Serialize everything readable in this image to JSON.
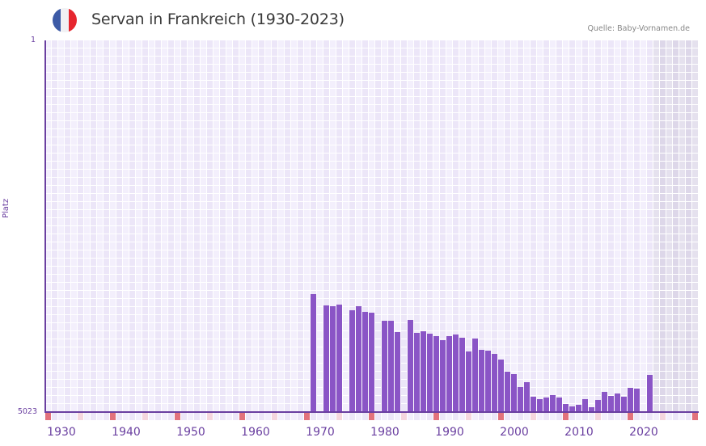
{
  "header": {
    "title": "Servan in Frankreich (1930-2023)",
    "source": "Quelle: Baby-Vornamen.de",
    "flag_colors": [
      "#3c5aa6",
      "#f1f1f4",
      "#e6262e"
    ]
  },
  "colors": {
    "bar": "#8a55c6",
    "axis": "#6a3fa0",
    "grid_a": "#f3effc",
    "grid_b": "#ece6f8",
    "future_a": "#e5e1ee",
    "future_b": "#ddd7e9",
    "marker_decade": "#e2727c",
    "marker_half": "#f5d6de",
    "marker_a": "#f3effc",
    "marker_b": "#ece6f8"
  },
  "chart_data": {
    "type": "bar",
    "title": "Servan in Frankreich (1930-2023)",
    "xlabel": "",
    "ylabel": "Platz",
    "y_inverted": true,
    "ylim": [
      1,
      5023
    ],
    "y_ticks": [
      "1",
      "5023"
    ],
    "x_range": [
      1929,
      2029
    ],
    "x_ticks": [
      1930,
      1940,
      1950,
      1960,
      1970,
      1980,
      1990,
      2000,
      2010,
      2020
    ],
    "future_shaded_from": 2023,
    "grid": true,
    "categories": [
      1970,
      1972,
      1973,
      1974,
      1976,
      1977,
      1978,
      1979,
      1981,
      1982,
      1983,
      1985,
      1986,
      1987,
      1988,
      1989,
      1990,
      1991,
      1992,
      1993,
      1994,
      1995,
      1996,
      1997,
      1998,
      1999,
      2000,
      2001,
      2002,
      2003,
      2004,
      2005,
      2006,
      2007,
      2008,
      2009,
      2010,
      2011,
      2012,
      2013,
      2014,
      2015,
      2016,
      2017,
      2018,
      2019,
      2020,
      2022
    ],
    "values": [
      3428,
      3581,
      3592,
      3570,
      3647,
      3592,
      3669,
      3680,
      3789,
      3789,
      3942,
      3778,
      3953,
      3931,
      3964,
      3996,
      4051,
      3996,
      3975,
      4018,
      4204,
      4029,
      4182,
      4193,
      4236,
      4313,
      4477,
      4510,
      4684,
      4619,
      4815,
      4848,
      4826,
      4793,
      4826,
      4913,
      4946,
      4924,
      4848,
      4957,
      4859,
      4750,
      4804,
      4771,
      4815,
      4695,
      4706,
      4521
    ]
  },
  "y_axis": {
    "top_label": "1",
    "bottom_label": "5023",
    "title": "Platz"
  },
  "x_axis": {
    "labels": [
      "1930",
      "1940",
      "1950",
      "1960",
      "1970",
      "1980",
      "1990",
      "2000",
      "2010",
      "2020"
    ]
  }
}
